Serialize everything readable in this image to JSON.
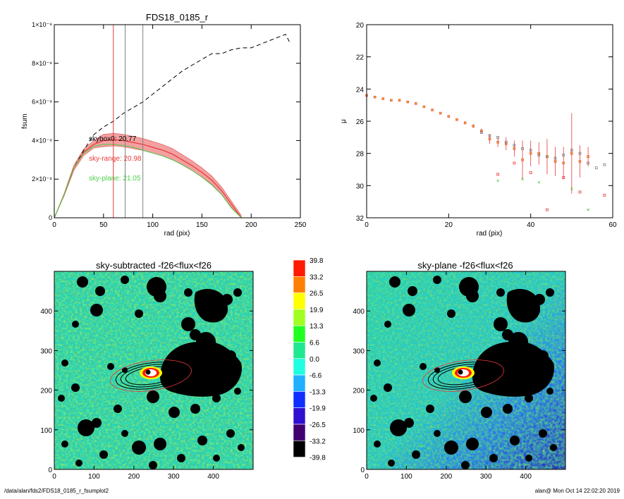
{
  "colors": {
    "red": "#e8393a",
    "green": "#4ad04a",
    "grey": "#808080",
    "black": "#000000",
    "band": "#f2a0a0"
  },
  "chart_data": [
    {
      "id": "fsum",
      "type": "line",
      "title": "FDS18_0185_r",
      "xlabel": "rad (pix)",
      "ylabel": "fsum",
      "xlim": [
        0,
        250
      ],
      "ylim": [
        0,
        1e-08
      ],
      "xticks": [
        "0",
        "50",
        "100",
        "150",
        "200",
        "250"
      ],
      "yticks": [
        "0",
        "2×10⁻⁹",
        "4×10⁻⁹",
        "6×10⁻⁹",
        "8×10⁻⁹",
        "1×10⁻⁸"
      ],
      "vlines": [
        {
          "x": 60,
          "color": "red"
        },
        {
          "x": 72,
          "color": "grey"
        },
        {
          "x": 90,
          "color": "grey"
        }
      ],
      "annotations": [
        {
          "text": "skybox0: 20.77",
          "color": "black"
        },
        {
          "text": "sky-range: 20.98",
          "color": "red"
        },
        {
          "text": "sky-plane: 21.05",
          "color": "green"
        }
      ],
      "series": [
        {
          "style": "dashed-black",
          "x": [
            0,
            10,
            20,
            30,
            40,
            50,
            60,
            70,
            80,
            90,
            100,
            110,
            120,
            130,
            140,
            150,
            160,
            170,
            180,
            190,
            200,
            210,
            220,
            230,
            235,
            240
          ],
          "y": [
            0,
            1.2e-09,
            2.6e-09,
            3.5e-09,
            4.3e-09,
            4.7e-09,
            5e-09,
            5.4e-09,
            5.7e-09,
            6e-09,
            6.4e-09,
            6.8e-09,
            7.2e-09,
            7.6e-09,
            7.9e-09,
            8.2e-09,
            8.5e-09,
            8.5e-09,
            8.7e-09,
            8.8e-09,
            8.8e-09,
            9e-09,
            9.2e-09,
            9.4e-09,
            9.5e-09,
            9e-09
          ]
        },
        {
          "style": "red-with-band",
          "x": [
            0,
            10,
            20,
            30,
            40,
            50,
            60,
            70,
            80,
            90,
            100,
            110,
            120,
            130,
            140,
            150,
            160,
            170,
            180,
            190
          ],
          "y": [
            0,
            1.2e-09,
            2.6e-09,
            3.4e-09,
            3.8e-09,
            4e-09,
            4.05e-09,
            4e-09,
            3.9e-09,
            3.8e-09,
            3.65e-09,
            3.5e-09,
            3.3e-09,
            3e-09,
            2.7e-09,
            2.35e-09,
            1.95e-09,
            1.4e-09,
            7e-10,
            0
          ]
        },
        {
          "style": "green",
          "x": [
            0,
            10,
            20,
            30,
            40,
            50,
            60,
            70,
            80,
            90,
            100,
            110,
            120,
            130,
            140,
            150,
            160,
            170,
            180,
            190
          ],
          "y": [
            0,
            1.2e-09,
            2.6e-09,
            3.35e-09,
            3.7e-09,
            3.8e-09,
            3.8e-09,
            3.75e-09,
            3.65e-09,
            3.5e-09,
            3.35e-09,
            3.2e-09,
            3e-09,
            2.75e-09,
            2.45e-09,
            2.1e-09,
            1.7e-09,
            1.2e-09,
            5e-10,
            0
          ]
        }
      ]
    },
    {
      "id": "mu",
      "type": "scatter",
      "title": "",
      "xlabel": "rad (pix)",
      "ylabel": "μ",
      "xlim": [
        0,
        60
      ],
      "ylim": [
        32,
        20
      ],
      "xticks": [
        "0",
        "20",
        "40",
        "60"
      ],
      "yticks": [
        "20",
        "22",
        "24",
        "26",
        "28",
        "30",
        "32"
      ],
      "series": [
        {
          "style": "red-errorbars",
          "x": [
            0,
            2,
            4,
            6,
            8,
            10,
            12,
            14,
            16,
            18,
            20,
            22,
            24,
            26,
            28,
            30,
            32,
            34,
            36,
            38,
            40,
            42,
            44,
            46,
            48,
            50,
            52,
            54
          ],
          "y": [
            24.4,
            24.5,
            24.6,
            24.7,
            24.7,
            24.8,
            24.9,
            25.1,
            25.3,
            25.5,
            25.7,
            25.9,
            26.1,
            26.3,
            26.6,
            27.1,
            27.3,
            27.4,
            27.7,
            28.4,
            28.0,
            28.0,
            28.2,
            28.5,
            28.6,
            28.0,
            28.5,
            28.2
          ],
          "err": [
            0.02,
            0.02,
            0.02,
            0.03,
            0.03,
            0.03,
            0.04,
            0.05,
            0.05,
            0.06,
            0.07,
            0.08,
            0.1,
            0.12,
            0.15,
            0.3,
            0.3,
            0.4,
            0.5,
            1.2,
            0.8,
            0.7,
            1.1,
            0.9,
            1.0,
            2.5,
            1.0,
            0.6
          ]
        },
        {
          "style": "grey-squares",
          "x": [
            28,
            30,
            32,
            34,
            36,
            38,
            40,
            42,
            44,
            46,
            48,
            50,
            52,
            54,
            56,
            58
          ],
          "y": [
            26.7,
            26.9,
            27.0,
            27.3,
            27.5,
            27.7,
            27.8,
            28.1,
            28.2,
            28.3,
            28.1,
            27.8,
            28.0,
            28.6,
            28.9,
            28.7
          ]
        },
        {
          "style": "red-squares",
          "x": [
            32,
            36,
            40,
            44,
            48,
            52,
            58
          ],
          "y": [
            29.3,
            28.6,
            29.2,
            31.5,
            29.5,
            30.4,
            30.6
          ]
        },
        {
          "style": "green-crosses",
          "x": [
            32,
            38,
            42,
            50,
            54
          ],
          "y": [
            29.7,
            29.6,
            29.8,
            30.2,
            31.5
          ]
        }
      ]
    }
  ],
  "images": {
    "left_title": "sky-subtracted -f26<flux<f26",
    "right_title": "sky-plane -f26<flux<f26",
    "xticks": [
      "0",
      "100",
      "200",
      "300",
      "400"
    ],
    "yticks": [
      "0",
      "100",
      "200",
      "300",
      "400"
    ],
    "xlim": [
      0,
      500
    ],
    "ylim": [
      0,
      500
    ]
  },
  "colorbar": {
    "labels": [
      "39.8",
      "33.2",
      "26.5",
      "19.9",
      "13.3",
      "6.6",
      "0.0",
      "-6.6",
      "-13.3",
      "-19.9",
      "-26.5",
      "-33.2",
      "-39.8"
    ],
    "colors": [
      "#ff1a00",
      "#ff8000",
      "#ffff00",
      "#a0ff20",
      "#20ff20",
      "#20e890",
      "#20ffe0",
      "#20b0ff",
      "#1030ff",
      "#3010d0",
      "#400070",
      "#000000"
    ]
  },
  "footer": {
    "left": "/data/alan/fds2/FDS18_0185_r_fsumplot2",
    "right": "alan@  Mon Oct 14 22:02:20 2019"
  }
}
